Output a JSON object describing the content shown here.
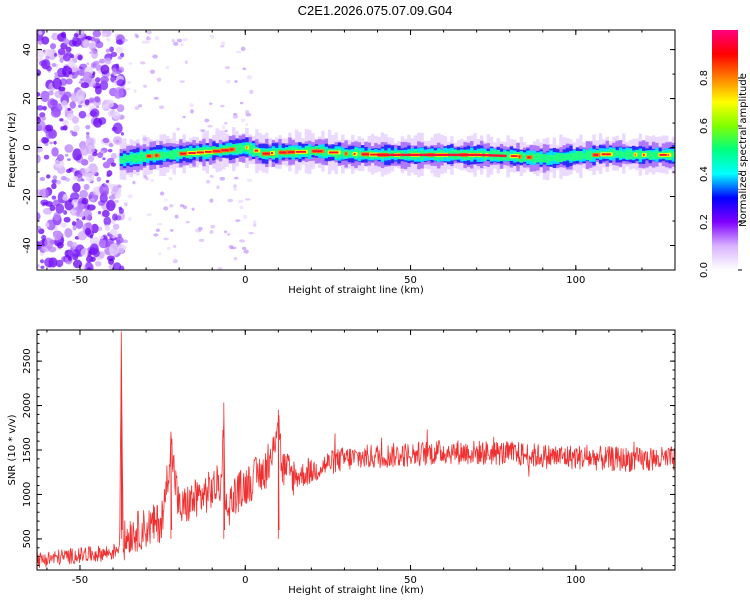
{
  "figure_title": "C2E1.2026.075.07.09.G04",
  "chart_data": [
    {
      "type": "heatmap",
      "title": "",
      "xlabel": "Height of straight line (km)",
      "ylabel": "Frequency (Hz)",
      "xlim": [
        -63,
        130
      ],
      "ylim": [
        -50,
        48
      ],
      "xticks": [
        -50,
        0,
        50,
        100
      ],
      "yticks": [
        -40,
        -20,
        0,
        20,
        40
      ],
      "colorbar": {
        "label": "Normalized spectral amplitude",
        "range": [
          0,
          1
        ],
        "ticks": [
          "0.0",
          "0.2",
          "0.4",
          "0.6",
          "0.8"
        ],
        "colors": [
          "#ffffff",
          "#d9b3ff",
          "#8000ff",
          "#0000ff",
          "#00ffff",
          "#00ff80",
          "#80ff00",
          "#ffff00",
          "#ff8000",
          "#ff0000",
          "#ff0080"
        ]
      },
      "ridge": {
        "description_points_x": [
          -38,
          -30,
          -20,
          -10,
          0,
          5,
          10,
          20,
          30,
          40,
          50,
          60,
          70,
          80,
          90,
          100,
          110,
          120,
          130
        ],
        "frequency": [
          -5,
          -3.5,
          -2.5,
          -1.5,
          0,
          -2.5,
          -2,
          -1.5,
          -2.5,
          -3,
          -3,
          -3,
          -3,
          -3.5,
          -4.5,
          -3.5,
          -2.5,
          -3,
          -3
        ]
      }
    },
    {
      "type": "line",
      "title": "",
      "xlabel": "Height of straight line (km)",
      "ylabel": "SNR (10 * v/v)",
      "xlim": [
        -63,
        130
      ],
      "ylim": [
        150,
        2850
      ],
      "xticks": [
        -50,
        0,
        50,
        100
      ],
      "yticks": [
        500,
        1000,
        1500,
        2000,
        2500
      ],
      "series": [
        {
          "color": "#f03030",
          "x": [
            -63,
            -55,
            -45,
            -40,
            -38,
            -37.5,
            -37,
            -35,
            -30,
            -25,
            -22.5,
            -20,
            -15,
            -10,
            -7,
            -6.5,
            -6,
            -3,
            0,
            5,
            8,
            10,
            11,
            15,
            20,
            25,
            30,
            40,
            50,
            60,
            70,
            80,
            90,
            100,
            110,
            120,
            130
          ],
          "values": [
            260,
            300,
            330,
            350,
            420,
            2800,
            450,
            560,
            620,
            700,
            1560,
            820,
            950,
            1050,
            1150,
            2030,
            800,
            1000,
            1100,
            1250,
            1350,
            1950,
            1300,
            1200,
            1250,
            1350,
            1400,
            1430,
            1450,
            1480,
            1470,
            1460,
            1430,
            1420,
            1400,
            1390,
            1400
          ]
        }
      ]
    }
  ]
}
